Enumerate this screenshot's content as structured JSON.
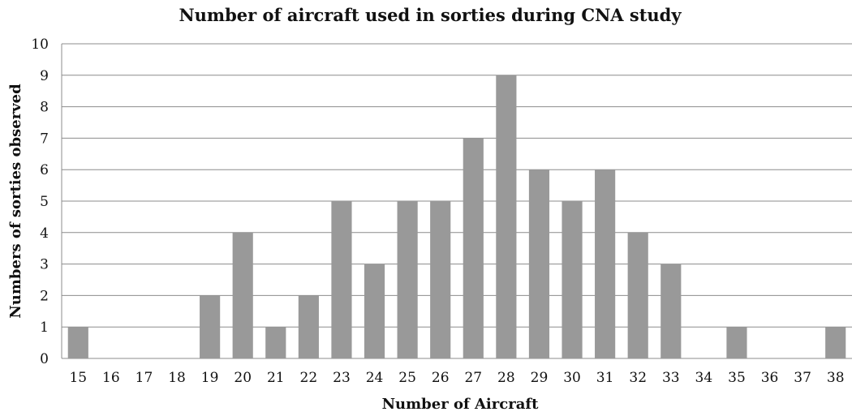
{
  "chart_data": {
    "type": "bar",
    "title": "Number of aircraft used in sorties during CNA study",
    "xlabel": "Number of Aircraft",
    "ylabel": "Numbers of sorties observed",
    "categories": [
      "15",
      "16",
      "17",
      "18",
      "19",
      "20",
      "21",
      "22",
      "23",
      "24",
      "25",
      "26",
      "27",
      "28",
      "29",
      "30",
      "31",
      "32",
      "33",
      "34",
      "35",
      "36",
      "37",
      "38"
    ],
    "values": [
      1,
      0,
      0,
      0,
      2,
      4,
      1,
      2,
      5,
      3,
      5,
      5,
      7,
      9,
      6,
      5,
      6,
      4,
      3,
      0,
      1,
      0,
      0,
      1
    ],
    "ylim": [
      0,
      10
    ],
    "yticks": [
      "0",
      "1",
      "2",
      "3",
      "4",
      "5",
      "6",
      "7",
      "8",
      "9",
      "10"
    ],
    "grid": true,
    "legend": "none",
    "bar_color": "#999999"
  }
}
